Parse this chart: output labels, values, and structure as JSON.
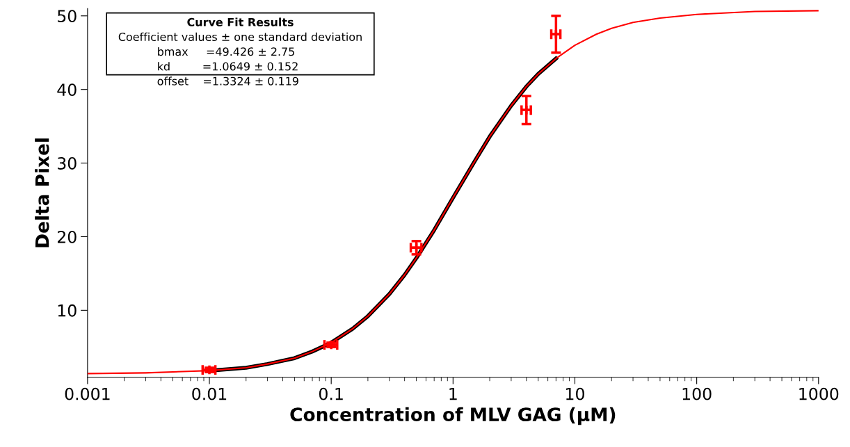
{
  "chart_data": {
    "type": "scatter",
    "xlabel": "Concentration of MLV GAG (µM)",
    "ylabel": "Delta Pixel",
    "log": "x",
    "xlim": [
      0.001,
      1000
    ],
    "xticks": [
      0.001,
      0.01,
      0.1,
      1,
      10,
      100,
      1000
    ],
    "ylim": [
      0.9,
      51
    ],
    "yticks": [
      10,
      20,
      30,
      40,
      50
    ],
    "grid": false,
    "legend": false,
    "annotations": [
      "Curve Fit Results",
      "Coefficient values ± one standard deviation",
      "bmax     =49.426 ± 2.75",
      "kd         =1.0649 ± 0.152",
      "offset    =1.3324 ± 0.119"
    ],
    "series": [
      {
        "type": "line",
        "color": "#000000",
        "x": [
          0.01,
          0.02,
          0.03,
          0.05,
          0.07,
          0.1,
          0.15,
          0.2,
          0.3,
          0.4,
          0.5,
          0.7,
          1,
          1.5,
          2,
          3,
          4,
          5,
          7
        ],
        "values": [
          1.8,
          2.2,
          2.7,
          3.5,
          4.4,
          5.6,
          7.5,
          9.2,
          12.2,
          14.8,
          17.1,
          20.9,
          25.3,
          30.2,
          33.6,
          37.8,
          40.4,
          42.1,
          44.2
        ]
      },
      {
        "type": "line",
        "color": "#ff0000",
        "x": [
          0.001,
          0.003,
          0.01,
          0.02,
          0.03,
          0.05,
          0.07,
          0.1,
          0.15,
          0.2,
          0.3,
          0.4,
          0.5,
          0.7,
          1,
          1.5,
          2,
          3,
          4,
          5,
          7,
          10,
          15,
          20,
          30,
          50,
          100,
          300,
          1000
        ],
        "values": [
          1.4,
          1.5,
          1.8,
          2.2,
          2.7,
          3.5,
          4.4,
          5.6,
          7.5,
          9.2,
          12.2,
          14.8,
          17.1,
          20.9,
          25.3,
          30.2,
          33.6,
          37.8,
          40.4,
          42.1,
          44.2,
          46.0,
          47.5,
          48.3,
          49.1,
          49.7,
          50.2,
          50.6,
          50.7
        ]
      },
      {
        "color": "#ff0000",
        "marker": "cross",
        "x": [
          0.01,
          0.1,
          0.5,
          4,
          7
        ],
        "values": [
          1.9,
          5.3,
          18.5,
          37.2,
          47.5
        ],
        "errors": [
          0.3,
          0.3,
          0.9,
          1.9,
          2.5
        ],
        "xerrors": [
          0.0012,
          0.012,
          0.05,
          0.35,
          0.6
        ]
      }
    ]
  }
}
